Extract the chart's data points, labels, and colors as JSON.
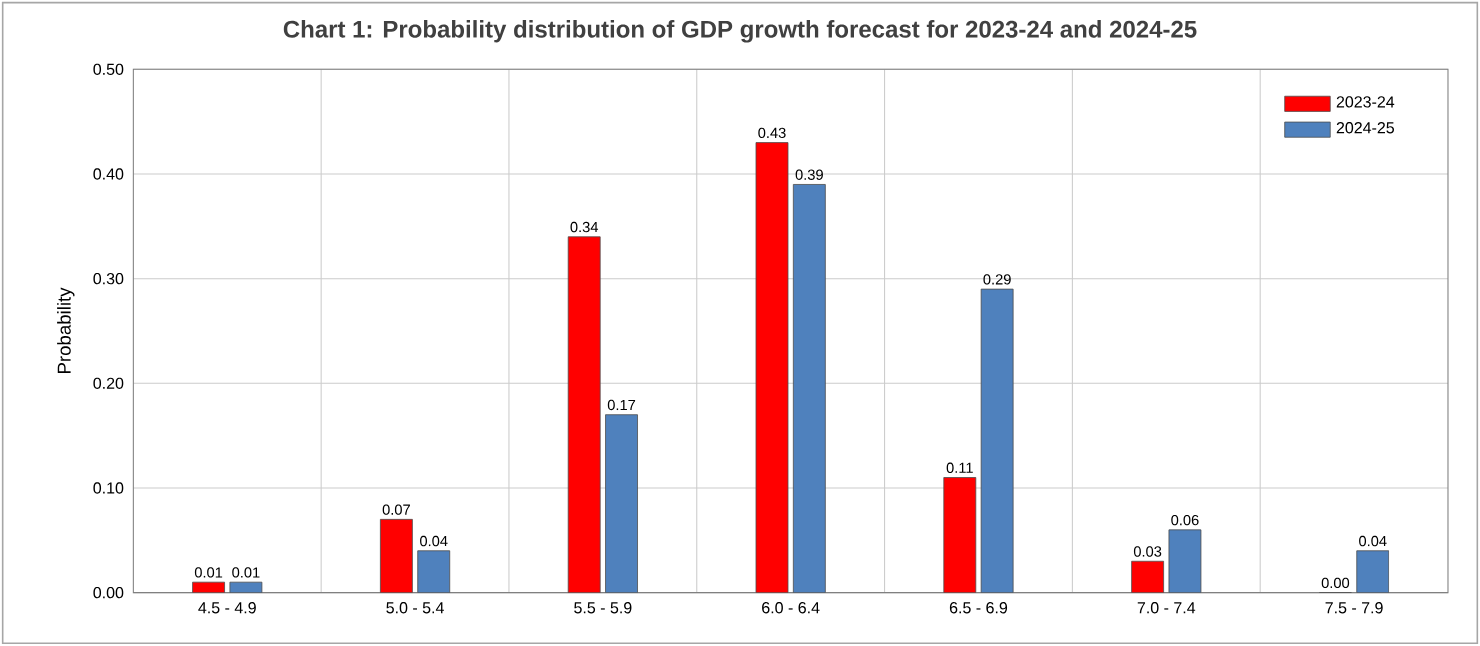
{
  "chart_data": {
    "type": "bar",
    "title": "Chart 1: Probability distribution of  GDP growth forecast for 2023-24 and 2024-25",
    "ylabel": "Probability",
    "categories": [
      "4.5 - 4.9",
      "5.0 - 5.4",
      "5.5 - 5.9",
      "6.0 - 6.4",
      "6.5 - 6.9",
      "7.0 - 7.4",
      "7.5 - 7.9"
    ],
    "series": [
      {
        "name": "2023-24",
        "color": "#ff0000",
        "values": [
          0.01,
          0.07,
          0.34,
          0.43,
          0.11,
          0.03,
          0.0
        ],
        "value_labels": [
          "0.01",
          "0.07",
          "0.34",
          "0.43",
          "0.11",
          "0.03",
          "0.00"
        ]
      },
      {
        "name": "2024-25",
        "color": "#4f81bd",
        "values": [
          0.01,
          0.04,
          0.17,
          0.39,
          0.29,
          0.06,
          0.04
        ],
        "value_labels": [
          "0.01",
          "0.04",
          "0.17",
          "0.39",
          "0.29",
          "0.06",
          "0.04"
        ]
      }
    ],
    "ylim": [
      0,
      0.5
    ],
    "yticks": [
      {
        "value": 0,
        "label": "0.00"
      },
      {
        "value": 0.1,
        "label": "0.10"
      },
      {
        "value": 0.2,
        "label": "0.20"
      },
      {
        "value": 0.3,
        "label": "0.30"
      },
      {
        "value": 0.4,
        "label": "0.40"
      },
      {
        "value": 0.5,
        "label": "0.50"
      }
    ],
    "grid": true,
    "legend": "top right"
  }
}
